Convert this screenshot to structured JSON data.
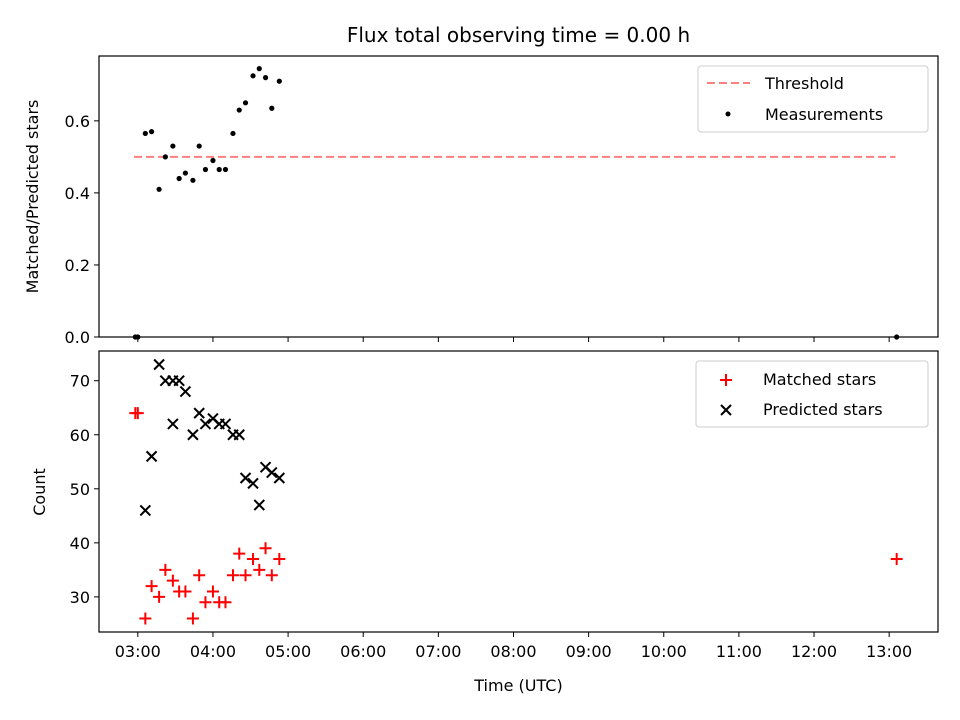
{
  "chart_data": [
    {
      "type": "scatter",
      "title": "Flux total observing time = 0.00 h",
      "xlabel": "",
      "ylabel": "Matched/Predicted stars",
      "xlim": [
        "02:29",
        "13:39"
      ],
      "ylim": [
        0.0,
        0.78
      ],
      "yticks": [
        0.0,
        0.2,
        0.4,
        0.6
      ],
      "ytick_labels": [
        "0.0",
        "0.2",
        "0.4",
        "0.6"
      ],
      "xticks": [
        "03:00",
        "04:00",
        "05:00",
        "06:00",
        "07:00",
        "08:00",
        "09:00",
        "10:00",
        "11:00",
        "12:00",
        "13:00"
      ],
      "legend_position": "top-right",
      "threshold": {
        "name": "Threshold",
        "color": "#ff7f7f",
        "x": [
          "02:57",
          "13:05"
        ],
        "y": 0.5
      },
      "series": [
        {
          "name": "Measurements",
          "color": "#000000",
          "marker": "dot",
          "x": [
            "02:58",
            "03:00",
            "03:06",
            "03:11",
            "03:17",
            "03:22",
            "03:28",
            "03:33",
            "03:38",
            "03:44",
            "03:49",
            "03:54",
            "04:00",
            "04:05",
            "04:10",
            "04:16",
            "04:21",
            "04:26",
            "04:32",
            "04:37",
            "04:42",
            "04:47",
            "04:53",
            "13:06"
          ],
          "y": [
            0.0,
            0.0,
            0.565,
            0.57,
            0.41,
            0.5,
            0.53,
            0.44,
            0.455,
            0.435,
            0.53,
            0.465,
            0.49,
            0.465,
            0.465,
            0.565,
            0.63,
            0.65,
            0.725,
            0.745,
            0.72,
            0.635,
            0.71,
            0.0
          ]
        }
      ]
    },
    {
      "type": "scatter",
      "title": "",
      "xlabel": "Time (UTC)",
      "ylabel": "Count",
      "xlim": [
        "02:29",
        "13:39"
      ],
      "ylim": [
        23.5,
        75.5
      ],
      "yticks": [
        30,
        40,
        50,
        60,
        70
      ],
      "ytick_labels": [
        "30",
        "40",
        "50",
        "60",
        "70"
      ],
      "xticks": [
        "03:00",
        "04:00",
        "05:00",
        "06:00",
        "07:00",
        "08:00",
        "09:00",
        "10:00",
        "11:00",
        "12:00",
        "13:00"
      ],
      "xtick_labels": [
        "03:00",
        "04:00",
        "05:00",
        "06:00",
        "07:00",
        "08:00",
        "09:00",
        "10:00",
        "11:00",
        "12:00",
        "13:00"
      ],
      "legend_position": "top-right",
      "series": [
        {
          "name": "Matched stars",
          "color": "#ff0000",
          "marker": "plus",
          "x": [
            "02:58",
            "03:00",
            "03:06",
            "03:11",
            "03:17",
            "03:22",
            "03:28",
            "03:33",
            "03:38",
            "03:44",
            "03:49",
            "03:54",
            "04:00",
            "04:05",
            "04:10",
            "04:16",
            "04:21",
            "04:26",
            "04:32",
            "04:37",
            "04:42",
            "04:47",
            "04:53",
            "13:06"
          ],
          "y": [
            64,
            64,
            26,
            32,
            30,
            35,
            33,
            31,
            31,
            26,
            34,
            29,
            31,
            29,
            29,
            34,
            38,
            34,
            37,
            35,
            39,
            34,
            37,
            37
          ]
        },
        {
          "name": "Predicted stars",
          "color": "#000000",
          "marker": "x",
          "x": [
            "03:06",
            "03:11",
            "03:17",
            "03:22",
            "03:28",
            "03:28",
            "03:33",
            "03:38",
            "03:44",
            "03:49",
            "03:54",
            "04:00",
            "04:05",
            "04:10",
            "04:16",
            "04:21",
            "04:26",
            "04:32",
            "04:37",
            "04:42",
            "04:47",
            "04:53"
          ],
          "y": [
            46,
            56,
            73,
            70,
            70,
            62,
            70,
            68,
            60,
            64,
            62,
            63,
            62,
            62,
            60,
            60,
            52,
            51,
            47,
            54,
            53,
            52
          ]
        }
      ]
    }
  ]
}
